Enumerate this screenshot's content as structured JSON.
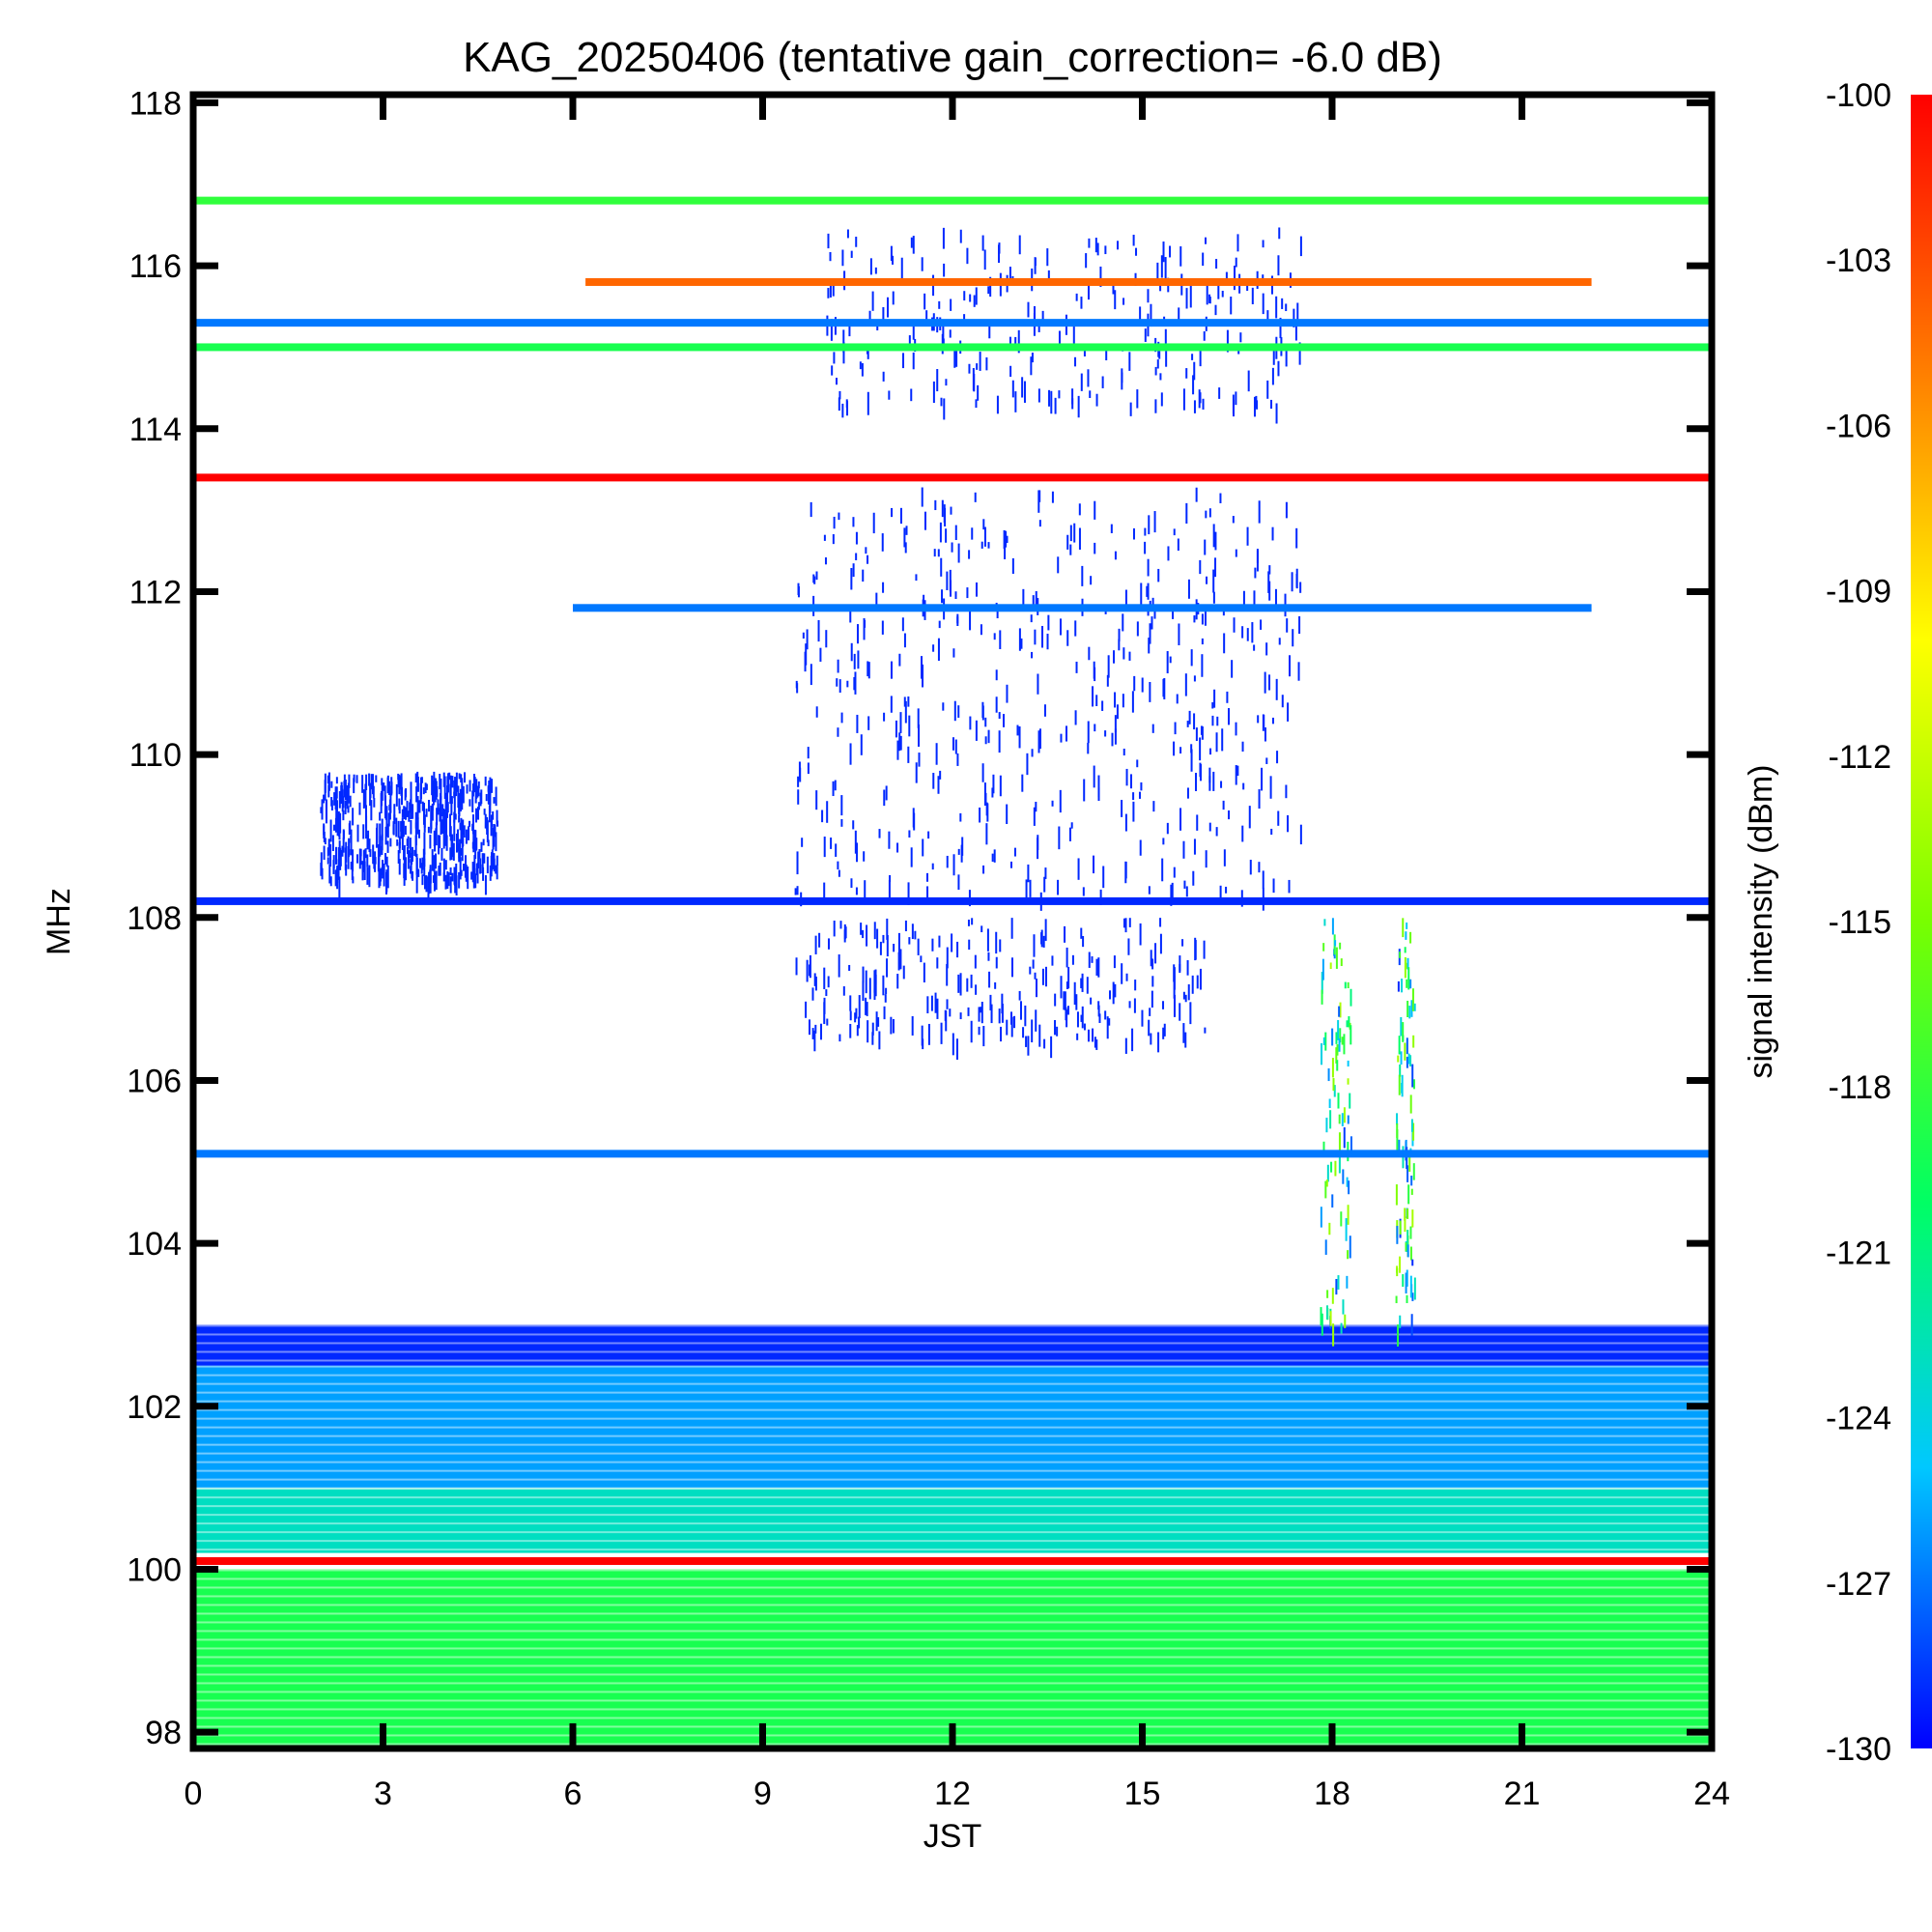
{
  "chart_data": {
    "type": "heatmap",
    "title": "KAG_20250406 (tentative gain_correction= -6.0 dB)",
    "xlabel": "JST",
    "ylabel": "MHz",
    "colorbar_label": "signal intensity (dBm)",
    "xlim": [
      0,
      24
    ],
    "ylim": [
      97.8,
      118.1
    ],
    "x_ticks": [
      "0",
      "3",
      "6",
      "9",
      "12",
      "15",
      "18",
      "21",
      "24"
    ],
    "y_ticks": [
      "98",
      "100",
      "102",
      "104",
      "106",
      "108",
      "110",
      "112",
      "114",
      "116",
      "118"
    ],
    "color_range": [
      -130,
      -100
    ],
    "colorbar_ticks": [
      "-100",
      "-103",
      "-106",
      "-109",
      "-112",
      "-115",
      "-118",
      "-121",
      "-124",
      "-127",
      "-130"
    ],
    "colormap": [
      "#0000ff",
      "#00c8ff",
      "#00ff64",
      "#78ff00",
      "#ffff00",
      "#ff8000",
      "#ff0000"
    ],
    "continuous_bands": [
      {
        "freq": 116.8,
        "x_start": 0,
        "x_end": 24,
        "dbm": -118
      },
      {
        "freq": 115.8,
        "x_start": 6.2,
        "x_end": 22.1,
        "dbm": -104
      },
      {
        "freq": 115.3,
        "x_start": 0,
        "x_end": 24,
        "dbm": -127
      },
      {
        "freq": 115.0,
        "x_start": 0,
        "x_end": 24,
        "dbm": -119
      },
      {
        "freq": 113.4,
        "x_start": 0,
        "x_end": 24,
        "dbm": -100
      },
      {
        "freq": 111.8,
        "x_start": 6.0,
        "x_end": 22.1,
        "dbm": -127
      },
      {
        "freq": 108.2,
        "x_start": 0,
        "x_end": 24,
        "dbm": -129
      },
      {
        "freq": 105.1,
        "x_start": 0,
        "x_end": 24,
        "dbm": -127
      },
      {
        "freq": 100.1,
        "x_start": 0,
        "x_end": 24,
        "dbm": -100
      }
    ],
    "background_levels": [
      {
        "freq_range": [
          97.8,
          100.0
        ],
        "dbm": -119
      },
      {
        "freq_range": [
          100.2,
          101.0
        ],
        "dbm": -123
      },
      {
        "freq_range": [
          101.0,
          102.5
        ],
        "dbm": -126
      },
      {
        "freq_range": [
          102.5,
          103.0
        ],
        "dbm": -129
      }
    ],
    "activity_regions": [
      {
        "x_range": [
          9.5,
          17.5
        ],
        "freq_range": [
          108.3,
          113.3
        ],
        "intensity": "dense",
        "dbm": -129
      },
      {
        "x_range": [
          2.0,
          4.8
        ],
        "freq_range": [
          108.5,
          109.8
        ],
        "intensity": "dense",
        "dbm": -129
      },
      {
        "x_range": [
          9.5,
          16.0
        ],
        "freq_range": [
          106.5,
          108.0
        ],
        "intensity": "moderate",
        "dbm": -129
      },
      {
        "x_range": [
          10.0,
          17.5
        ],
        "freq_range": [
          114.3,
          116.5
        ],
        "intensity": "moderate",
        "dbm": -129
      },
      {
        "x_range": [
          17.8,
          18.3
        ],
        "freq_range": [
          103.0,
          108.0
        ],
        "intensity": "bursts",
        "dbm": -121
      },
      {
        "x_range": [
          19.0,
          19.3
        ],
        "freq_range": [
          103.0,
          108.0
        ],
        "intensity": "bursts",
        "dbm": -121
      }
    ]
  }
}
